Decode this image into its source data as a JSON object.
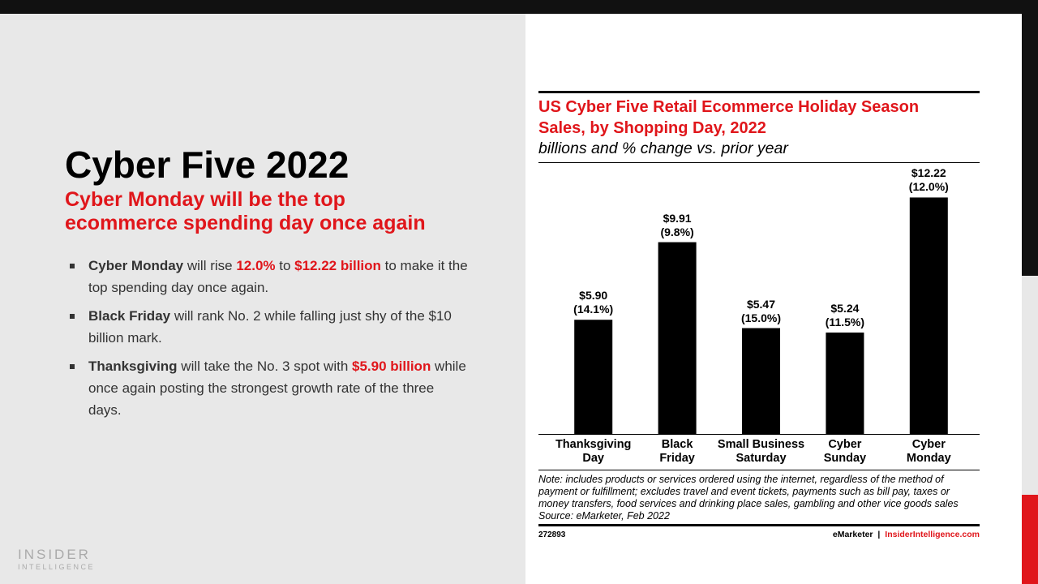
{
  "slide": {
    "title": "Cyber Five 2022",
    "subtitle": "Cyber Monday will be the top\necommerce spending day once again",
    "bullets": [
      [
        {
          "text": "Cyber Monday",
          "bold": true
        },
        {
          "text": " will rise "
        },
        {
          "text": "12.0%",
          "bold": true,
          "color": "#e0161b"
        },
        {
          "text": " to "
        },
        {
          "text": "$12.22 billion",
          "bold": true,
          "color": "#e0161b"
        },
        {
          "text": " to make it the top spending day once again."
        }
      ],
      [
        {
          "text": "Black Friday",
          "bold": true
        },
        {
          "text": " will rank No. 2 while falling just shy of the $10 billion mark."
        }
      ],
      [
        {
          "text": "Thanksgiving",
          "bold": true
        },
        {
          "text": " will take the No. 3 spot with "
        },
        {
          "text": "$5.90 billion",
          "bold": true,
          "color": "#e0161b"
        },
        {
          "text": " while once again posting the strongest growth rate of the three days."
        }
      ]
    ],
    "logo_top": "INSIDER",
    "logo_bottom": "INTELLIGENCE"
  },
  "chart_data": {
    "type": "bar",
    "title": "US Cyber Five Retail Ecommerce Holiday Season\nSales, by Shopping Day, 2022",
    "subtitle": "billions and % change vs. prior year",
    "categories": [
      "Thanksgiving\nDay",
      "Black\nFriday",
      "Small Business\nSaturday",
      "Cyber\nSunday",
      "Cyber\nMonday"
    ],
    "values": [
      5.9,
      9.91,
      5.47,
      5.24,
      12.22
    ],
    "value_labels": [
      "$5.90\n(14.1%)",
      "$9.91\n(9.8%)",
      "$5.47\n(15.0%)",
      "$5.24\n(11.5%)",
      "$12.22\n(12.0%)"
    ],
    "color": "#000000",
    "ylim": [
      0,
      14
    ],
    "note": "Note: includes products or services ordered using the internet, regardless of the method of\npayment or fulfillment; excludes travel and event tickets, payments such as bill pay, taxes or\nmoney transfers, food services and drinking place sales, gambling and other vice goods sales",
    "source": "Source: eMarketer, Feb 2022",
    "chart_id": "272893",
    "brand": "eMarketer",
    "separator": "|",
    "site": "InsiderIntelligence.com"
  }
}
